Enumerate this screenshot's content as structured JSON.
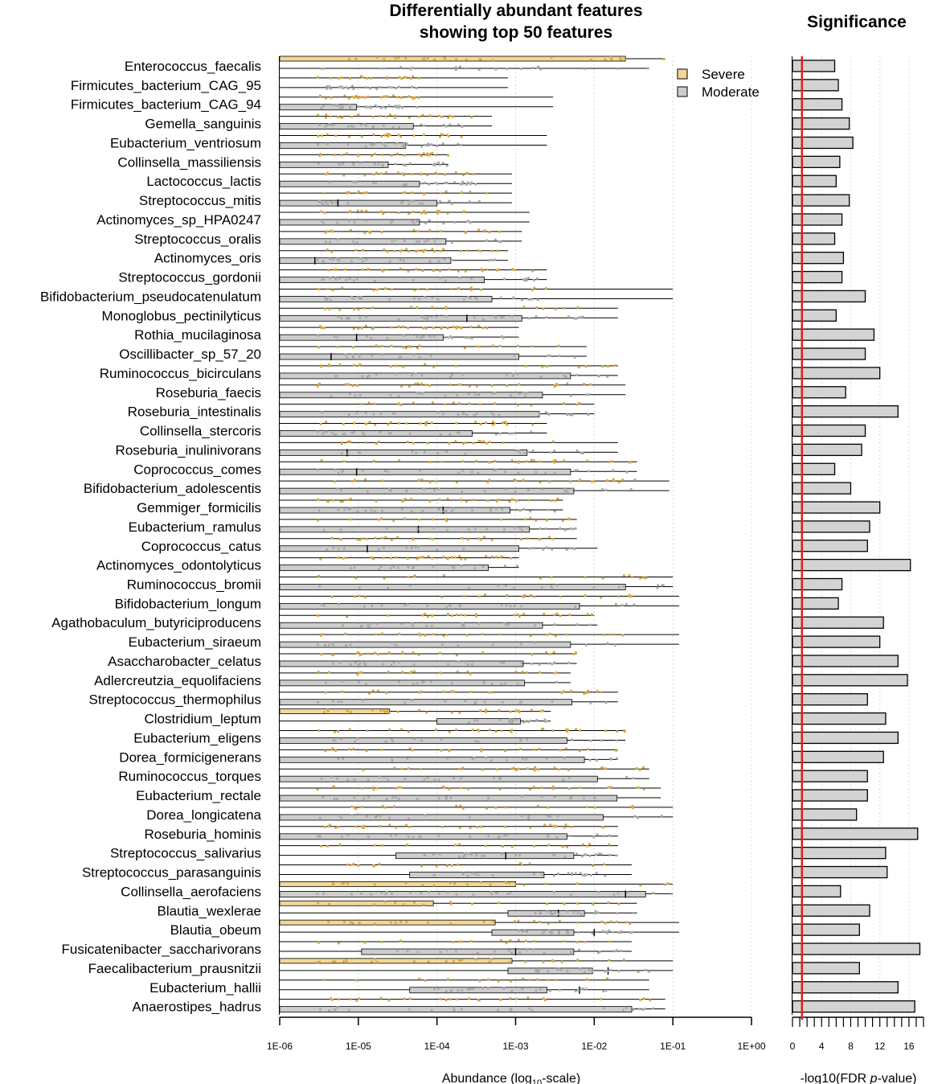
{
  "chart_data": [
    {
      "type": "bar",
      "title": "Differentially abundant features",
      "subtitle": "showing top 50 features",
      "xlabel": "Abundance (log",
      "xlabel_sub": "10",
      "xlabel_tail": "-scale)",
      "x_scale": "log10",
      "xlim": [
        1e-06,
        1
      ],
      "x_ticks": [
        "1E-06",
        "1E-05",
        "1E-04",
        "1E-03",
        "1E-02",
        "1E-01",
        "1E+00"
      ],
      "grid": "vertical dotted",
      "legend": {
        "position": "top-right",
        "entries": [
          {
            "name": "Severe",
            "color": "#f2d79a"
          },
          {
            "name": "Moderate",
            "color": "#cdcdcd"
          }
        ]
      },
      "point_colors": {
        "Severe": "#dba63a",
        "Moderate": "#a9a9a9"
      },
      "categories": [
        "Enterococcus_faecalis",
        "Firmicutes_bacterium_CAG_95",
        "Firmicutes_bacterium_CAG_94",
        "Gemella_sanguinis",
        "Eubacterium_ventriosum",
        "Collinsella_massiliensis",
        "Lactococcus_lactis",
        "Streptococcus_mitis",
        "Actinomyces_sp_HPA0247",
        "Streptococcus_oralis",
        "Actinomyces_oris",
        "Streptococcus_gordonii",
        "Bifidobacterium_pseudocatenulatum",
        "Monoglobus_pectinilyticus",
        "Rothia_mucilaginosa",
        "Oscillibacter_sp_57_20",
        "Ruminococcus_bicirculans",
        "Roseburia_faecis",
        "Roseburia_intestinalis",
        "Collinsella_stercoris",
        "Roseburia_inulinivorans",
        "Coprococcus_comes",
        "Bifidobacterium_adolescentis",
        "Gemmiger_formicilis",
        "Eubacterium_ramulus",
        "Coprococcus_catus",
        "Actinomyces_odontolyticus",
        "Ruminococcus_bromii",
        "Bifidobacterium_longum",
        "Agathobaculum_butyriciproducens",
        "Eubacterium_siraeum",
        "Asaccharobacter_celatus",
        "Adlercreutzia_equolifaciens",
        "Streptococcus_thermophilus",
        "Clostridium_leptum",
        "Eubacterium_eligens",
        "Dorea_formicigenerans",
        "Ruminococcus_torques",
        "Eubacterium_rectale",
        "Dorea_longicatena",
        "Roseburia_hominis",
        "Streptococcus_salivarius",
        "Streptococcus_parasanguinis",
        "Collinsella_aerofaciens",
        "Blautia_wexlerae",
        "Blautia_obeum",
        "Fusicatenibacter_saccharivorans",
        "Faecalibacterium_prausnitzii",
        "Eubacterium_hallii",
        "Anaerostipes_hadrus"
      ],
      "series": [
        {
          "name": "Severe",
          "q1": [
            1e-06,
            1e-06,
            1e-06,
            1e-06,
            1e-06,
            1e-06,
            1e-06,
            1e-06,
            1e-06,
            1e-06,
            1e-06,
            1e-06,
            1e-06,
            1e-06,
            1e-06,
            1e-06,
            1e-06,
            1e-06,
            1e-06,
            1e-06,
            1e-06,
            1e-06,
            1e-06,
            1e-06,
            1e-06,
            1e-06,
            1e-06,
            1e-06,
            1e-06,
            1e-06,
            1e-06,
            1e-06,
            1e-06,
            1e-06,
            1e-06,
            1e-06,
            1e-06,
            1e-06,
            1e-06,
            1e-06,
            1e-06,
            1e-06,
            1e-06,
            1e-06,
            1e-06,
            1e-06,
            1e-06,
            1e-06,
            1e-06,
            1e-06
          ],
          "q3": [
            0.025,
            1e-06,
            1e-06,
            1e-06,
            1e-06,
            1e-06,
            1e-06,
            1e-06,
            1e-06,
            1e-06,
            1e-06,
            1e-06,
            1e-06,
            1e-06,
            1e-06,
            1e-06,
            1e-06,
            1e-06,
            1e-06,
            1e-06,
            1e-06,
            1e-06,
            1e-06,
            1e-06,
            1e-06,
            1e-06,
            1e-06,
            1e-06,
            1e-06,
            1e-06,
            1e-06,
            1e-06,
            1e-06,
            1e-06,
            2.5e-05,
            1e-06,
            1e-06,
            1e-06,
            1e-06,
            1e-06,
            1e-06,
            1e-06,
            1e-06,
            0.001,
            9e-05,
            0.00055,
            1e-06,
            0.0009,
            1e-06,
            1e-06
          ],
          "median": [
            1e-06,
            1e-06,
            1e-06,
            1e-06,
            1e-06,
            1e-06,
            1e-06,
            1e-06,
            1e-06,
            1e-06,
            1e-06,
            1e-06,
            1e-06,
            1e-06,
            1e-06,
            1e-06,
            1e-06,
            1e-06,
            1e-06,
            1e-06,
            1e-06,
            1e-06,
            1e-06,
            1e-06,
            1e-06,
            1e-06,
            1e-06,
            1e-06,
            1e-06,
            1e-06,
            1e-06,
            1e-06,
            1e-06,
            1e-06,
            1e-06,
            1e-06,
            1e-06,
            1e-06,
            1e-06,
            1e-06,
            1e-06,
            1e-06,
            1e-06,
            1e-06,
            1e-06,
            1e-06,
            1e-06,
            1e-06,
            1e-06,
            1e-06
          ],
          "whisker_hi": [
            0.08,
            0.0008,
            0.003,
            0.0005,
            0.0025,
            0.00014,
            0.0009,
            0.0009,
            0.0015,
            0.0012,
            0.0008,
            0.0025,
            0.1,
            0.02,
            0.0011,
            0.008,
            0.02,
            0.025,
            0.01,
            0.0025,
            0.02,
            0.035,
            0.09,
            0.004,
            0.006,
            0.006,
            0.0011,
            0.1,
            0.12,
            0.01,
            0.12,
            0.006,
            0.005,
            0.02,
            0.0028,
            0.025,
            0.02,
            0.05,
            0.07,
            0.1,
            0.02,
            0.02,
            0.03,
            0.1,
            0.035,
            0.12,
            0.03,
            0.1,
            0.05,
            0.08
          ]
        },
        {
          "name": "Moderate",
          "q1": [
            1e-06,
            1e-06,
            1e-06,
            1e-06,
            1e-06,
            1e-06,
            1e-06,
            1e-06,
            1e-06,
            1e-06,
            1e-06,
            1e-06,
            1e-06,
            1e-06,
            1e-06,
            1e-06,
            1e-06,
            1e-06,
            1e-06,
            1e-06,
            1e-06,
            1e-06,
            1e-06,
            1e-06,
            1e-06,
            1e-06,
            1e-06,
            1e-06,
            1e-06,
            1e-06,
            1e-06,
            1e-06,
            1e-06,
            1e-06,
            0.0001,
            1e-06,
            1e-06,
            1e-06,
            1e-06,
            1e-06,
            1e-06,
            3e-05,
            4.5e-05,
            1e-06,
            0.0008,
            0.0005,
            1.1e-05,
            0.0008,
            4.5e-05,
            1e-06
          ],
          "q3": [
            1e-06,
            1e-06,
            9.5e-06,
            5e-05,
            4e-05,
            2.4e-05,
            6e-05,
            0.0001,
            6e-05,
            0.00013,
            0.00015,
            0.0004,
            0.0005,
            0.0012,
            0.00012,
            0.0011,
            0.005,
            0.0022,
            0.002,
            0.00028,
            0.0014,
            0.005,
            0.0055,
            0.00085,
            0.0015,
            0.0011,
            0.00045,
            0.025,
            0.0065,
            0.0022,
            0.005,
            0.00125,
            0.0013,
            0.0052,
            0.00115,
            0.0045,
            0.0075,
            0.011,
            0.0195,
            0.013,
            0.0045,
            0.0055,
            0.0023,
            0.045,
            0.0075,
            0.0055,
            0.0055,
            0.0095,
            0.0025,
            0.03
          ],
          "median": [
            1e-06,
            1e-06,
            1e-06,
            1e-06,
            1e-06,
            1e-06,
            1e-06,
            5.5e-06,
            1e-06,
            1e-06,
            2.8e-06,
            1e-06,
            1e-06,
            0.00024,
            9.5e-06,
            4.5e-06,
            1e-06,
            1e-06,
            1e-06,
            1e-06,
            7.2e-06,
            9.5e-06,
            1e-06,
            0.00012,
            5.8e-05,
            1.3e-05,
            1e-06,
            1e-06,
            1e-06,
            1e-06,
            1e-06,
            1e-06,
            1e-06,
            1e-06,
            1e-06,
            1e-06,
            1e-06,
            1e-06,
            1e-06,
            1e-06,
            1e-06,
            0.00075,
            1e-06,
            0.025,
            0.0035,
            0.01,
            0.001,
            0.015,
            0.0065,
            1e-06
          ],
          "whisker_hi": [
            0.05,
            0.0008,
            0.003,
            0.0005,
            0.0025,
            0.00014,
            0.0009,
            0.0009,
            0.0015,
            0.0012,
            0.0008,
            0.0025,
            0.1,
            0.02,
            0.0011,
            0.008,
            0.02,
            0.025,
            0.01,
            0.0025,
            0.02,
            0.035,
            0.09,
            0.004,
            0.006,
            0.011,
            0.0011,
            0.1,
            0.12,
            0.011,
            0.12,
            0.006,
            0.005,
            0.02,
            0.0028,
            0.025,
            0.02,
            0.05,
            0.07,
            0.1,
            0.02,
            0.02,
            0.03,
            0.1,
            0.035,
            0.12,
            0.03,
            0.1,
            0.05,
            0.08
          ]
        }
      ]
    },
    {
      "type": "bar",
      "title": "Significance",
      "xlabel": "-log10(FDR ",
      "xlabel_italic": "p",
      "xlabel_tail": "-value)",
      "xlim": [
        0,
        18
      ],
      "x_ticks": [
        0,
        4,
        8,
        12,
        16
      ],
      "grid": "vertical dotted",
      "threshold": {
        "value": 1.3,
        "color": "#e0201b"
      },
      "bar_color": "#d3d3d3",
      "categories_ref": "same as first chart",
      "values": [
        5.8,
        6.3,
        6.8,
        7.8,
        8.3,
        6.5,
        6.0,
        7.8,
        6.8,
        5.8,
        7.0,
        6.8,
        10.0,
        6.0,
        11.2,
        10.0,
        12.0,
        7.3,
        14.5,
        10.0,
        9.5,
        5.8,
        8.0,
        12.0,
        10.6,
        10.3,
        16.2,
        6.8,
        6.3,
        12.5,
        12.0,
        14.5,
        15.8,
        10.3,
        12.8,
        14.5,
        12.5,
        10.3,
        10.3,
        8.8,
        17.2,
        12.8,
        13.0,
        6.6,
        10.6,
        9.2,
        17.5,
        9.2,
        14.5,
        16.8
      ]
    }
  ]
}
